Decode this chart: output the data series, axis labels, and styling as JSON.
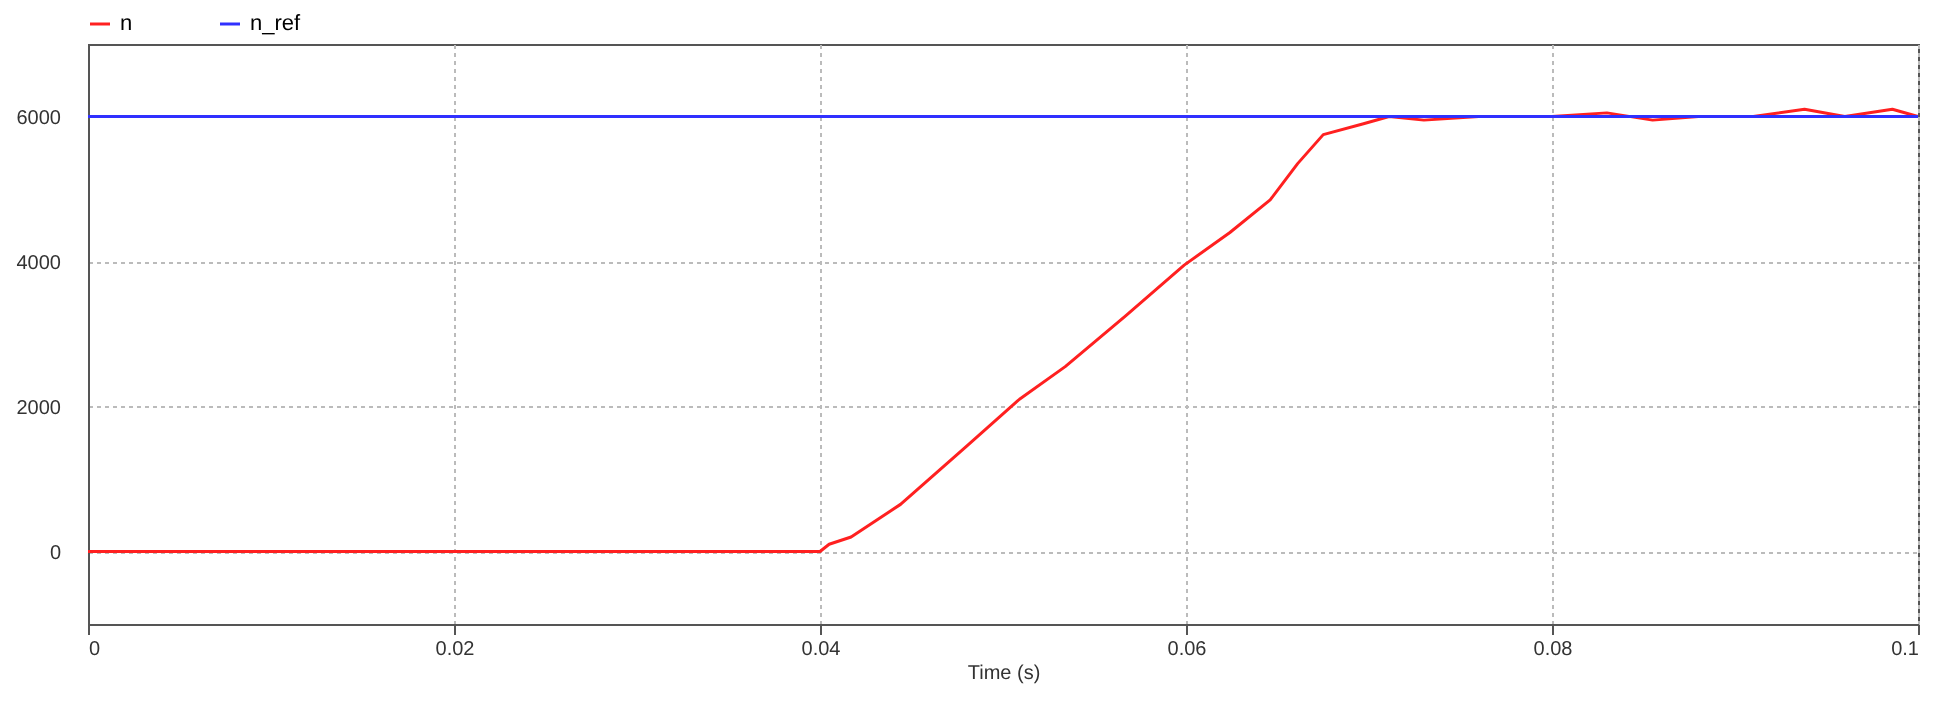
{
  "chart_data": {
    "type": "line",
    "xlabel": "Time (s)",
    "legend": "top left",
    "grid": true,
    "xlim": [
      0,
      0.1
    ],
    "xticks": [
      0,
      0.02,
      0.04,
      0.06,
      0.08,
      0.1
    ],
    "ylim": [
      -1000,
      7000
    ],
    "yticks": [
      0,
      2000,
      4000,
      6000
    ],
    "series": [
      {
        "name": "n",
        "color": "#ff2020",
        "x": [
          0,
          0.04,
          0.0405,
          0.0417,
          0.0444,
          0.048,
          0.0509,
          0.0534,
          0.0567,
          0.0599,
          0.0624,
          0.0646,
          0.0661,
          0.0675,
          0.0697,
          0.0711,
          0.073,
          0.076,
          0.08,
          0.083,
          0.0855,
          0.088,
          0.091,
          0.0938,
          0.096,
          0.0986,
          0.1
        ],
        "values": [
          0,
          0,
          100,
          200,
          650,
          1450,
          2100,
          2550,
          3250,
          3950,
          4400,
          4850,
          5350,
          5750,
          5900,
          6000,
          5950,
          6000,
          6000,
          6050,
          5950,
          6000,
          6000,
          6100,
          6000,
          6100,
          6000
        ]
      },
      {
        "name": "n_ref",
        "color": "#3030ff",
        "x": [
          0,
          0.1
        ],
        "values": [
          6000,
          6000
        ]
      }
    ]
  }
}
